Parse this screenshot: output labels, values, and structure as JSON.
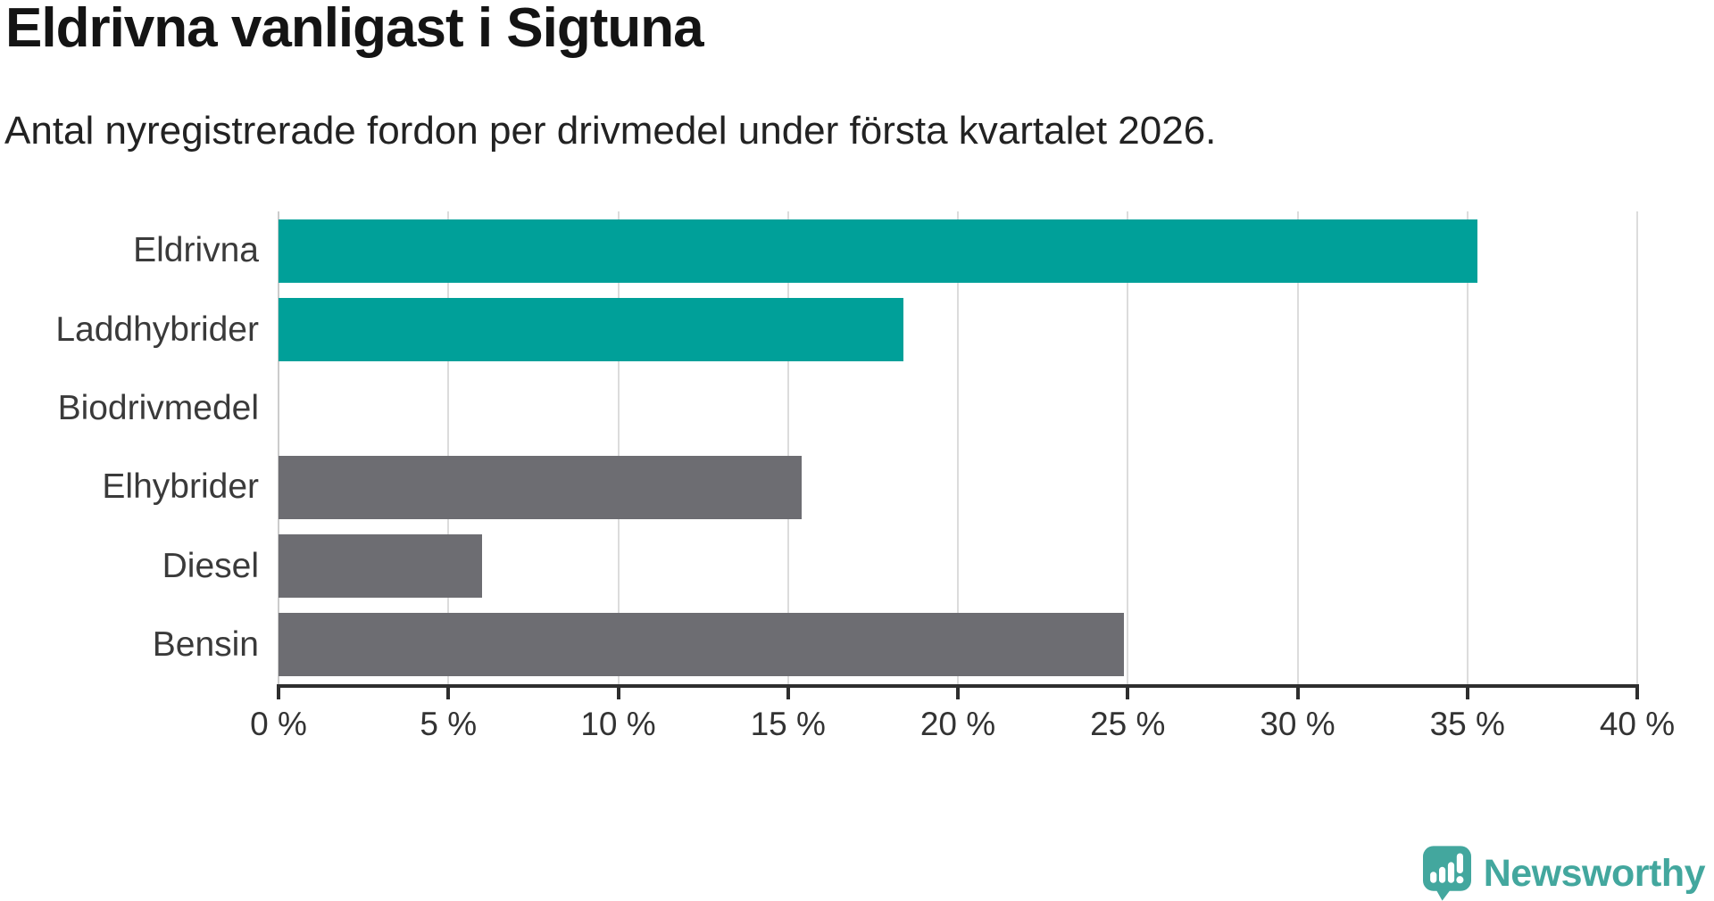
{
  "header": {
    "title": "Eldrivna vanligast i Sigtuna",
    "subtitle": "Antal nyregistrerade fordon per drivmedel under första kvartalet 2026."
  },
  "chart_data": {
    "type": "bar",
    "orientation": "horizontal",
    "title": "Eldrivna vanligast i Sigtuna",
    "subtitle": "Antal nyregistrerade fordon per drivmedel under första kvartalet 2026.",
    "categories": [
      "Eldrivna",
      "Laddhybrider",
      "Biodrivmedel",
      "Elhybrider",
      "Diesel",
      "Bensin"
    ],
    "values": [
      35.3,
      18.4,
      0,
      15.4,
      6.0,
      24.9
    ],
    "unit": "%",
    "bar_colors": [
      "#00a099",
      "#00a099",
      "#00a099",
      "#6d6d72",
      "#6d6d72",
      "#6d6d72"
    ],
    "xlim": [
      0,
      40
    ],
    "x_ticks": [
      {
        "value": 0,
        "label": "0 %"
      },
      {
        "value": 5,
        "label": "5 %"
      },
      {
        "value": 10,
        "label": "10 %"
      },
      {
        "value": 15,
        "label": "15 %"
      },
      {
        "value": 20,
        "label": "20 %"
      },
      {
        "value": 25,
        "label": "25 %"
      },
      {
        "value": 30,
        "label": "30 %"
      },
      {
        "value": 35,
        "label": "35 %"
      },
      {
        "value": 40,
        "label": "40 %"
      }
    ],
    "grid": "vertical gridlines on",
    "legend": "none"
  },
  "branding": {
    "wordmark": "Newsworthy",
    "icon": "newsworthy-speech-bubble-bar-chart-icon",
    "color": "#43a79e"
  },
  "colors": {
    "highlight": "#00a099",
    "neutral": "#6d6d72",
    "gridline": "#dcdcdc",
    "axis": "#2e2e2e",
    "text": "#333333",
    "title": "#141414",
    "background": "#ffffff"
  }
}
